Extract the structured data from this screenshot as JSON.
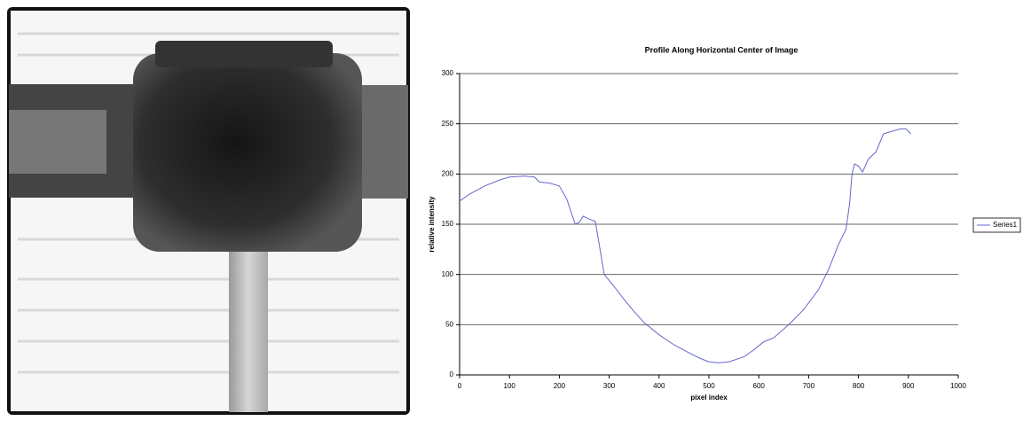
{
  "chart_data": {
    "type": "line",
    "title": "Profile Along Horizontal Center of Image",
    "x_label": "pixel index",
    "y_label": "relative intensity",
    "x": [
      0,
      20,
      50,
      80,
      100,
      130,
      150,
      160,
      180,
      200,
      215,
      225,
      232,
      240,
      248,
      260,
      272,
      280,
      290,
      310,
      330,
      350,
      370,
      400,
      430,
      460,
      480,
      500,
      520,
      540,
      570,
      590,
      610,
      630,
      660,
      690,
      720,
      740,
      760,
      775,
      782,
      787,
      792,
      800,
      808,
      820,
      835,
      850,
      870,
      885,
      895,
      905
    ],
    "series": [
      {
        "name": "Series1",
        "color": "#6666cc",
        "values": [
          173,
          180,
          188,
          194,
          197,
          198,
          197,
          192,
          191,
          188,
          175,
          160,
          150,
          152,
          158,
          155,
          153,
          130,
          100,
          88,
          75,
          63,
          52,
          40,
          30,
          22,
          17,
          13,
          12,
          13,
          18,
          25,
          33,
          37,
          50,
          65,
          85,
          105,
          130,
          145,
          170,
          200,
          210,
          208,
          202,
          215,
          222,
          240,
          243,
          245,
          245,
          240
        ]
      }
    ],
    "xlim": [
      0,
      1000
    ],
    "xticks": [
      0,
      100,
      200,
      300,
      400,
      500,
      600,
      700,
      800,
      900,
      1000
    ],
    "ylim": [
      0,
      300
    ],
    "yticks": [
      0,
      50,
      100,
      150,
      200,
      250,
      300
    ],
    "grid": true,
    "legend": "right"
  }
}
